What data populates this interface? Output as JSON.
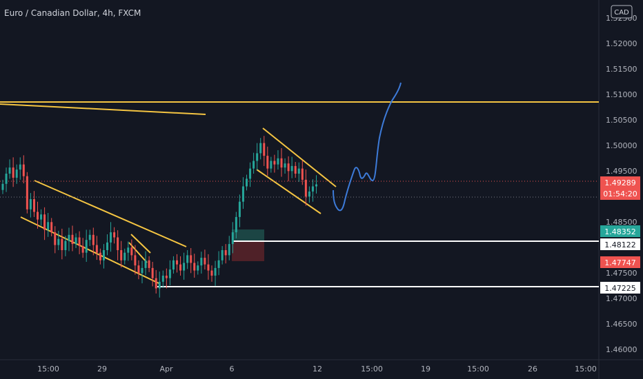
{
  "header": {
    "title": "Euro / Canadian Dollar, 4h, FXCM"
  },
  "currency_badge": "CAD",
  "colors": {
    "background": "#131722",
    "up": "#26a69a",
    "down": "#ef5350",
    "trendline": "#f5c542",
    "projection": "#3d7bd9",
    "text": "#b2b5be"
  },
  "price_axis": {
    "ticks": [
      "1.52500",
      "1.52000",
      "1.51500",
      "1.51000",
      "1.50500",
      "1.50000",
      "1.49500",
      "1.49000",
      "1.48500",
      "1.48000",
      "1.47500",
      "1.47000",
      "1.46500",
      "1.46000"
    ]
  },
  "time_axis": {
    "ticks": [
      "15:00",
      "29",
      "Apr",
      "6",
      "12",
      "15:00",
      "19",
      "15:00",
      "26",
      "15:00"
    ]
  },
  "price_labels": {
    "current": {
      "value": "1.49289",
      "countdown": "01:54:20",
      "color": "#ef5350"
    },
    "take_profit": {
      "value": "1.48352",
      "color": "#26a69a"
    },
    "entry": {
      "value": "1.48122",
      "color": "#ffffff"
    },
    "stop_loss": {
      "value": "1.47747",
      "color": "#ef5350"
    },
    "support": {
      "value": "1.47225",
      "color": "#ffffff"
    }
  },
  "chart_data": {
    "type": "candlestick",
    "instrument": "EURCAD",
    "interval": "4h",
    "source": "FXCM",
    "ylim": [
      1.4585,
      1.5265
    ],
    "candles_close": [
      1.493,
      1.495,
      1.4962,
      1.4942,
      1.4958,
      1.4968,
      1.4945,
      1.488,
      1.49,
      1.4875,
      1.486,
      1.487,
      1.484,
      1.4855,
      1.4835,
      1.481,
      1.4822,
      1.48,
      1.4818,
      1.483,
      1.4812,
      1.4825,
      1.4808,
      1.4795,
      1.482,
      1.483,
      1.481,
      1.4795,
      1.478,
      1.48,
      1.4815,
      1.4835,
      1.4825,
      1.48,
      1.478,
      1.4795,
      1.4805,
      1.479,
      1.477,
      1.4755,
      1.4765,
      1.478,
      1.4765,
      1.4745,
      1.4725,
      1.4738,
      1.475,
      1.4745,
      1.4762,
      1.478,
      1.4772,
      1.476,
      1.4775,
      1.479,
      1.4775,
      1.476,
      1.477,
      1.4785,
      1.4772,
      1.476,
      1.475,
      1.4765,
      1.478,
      1.48,
      1.479,
      1.4812,
      1.4835,
      1.4865,
      1.4895,
      1.4925,
      1.494,
      1.496,
      1.4975,
      1.499,
      1.501,
      1.4985,
      1.496,
      1.4975,
      1.4968,
      1.498,
      1.4962,
      1.497,
      1.4955,
      1.4965,
      1.495,
      1.496,
      1.4938,
      1.4905,
      1.4915,
      1.4925,
      1.4929
    ],
    "candles_open_first": 1.4918,
    "last_price": 1.49289,
    "resistance_level": 1.5085,
    "support_level": 1.47225,
    "trade_box": {
      "entry": 1.48122,
      "take_profit": 1.48352,
      "stop_loss": 1.47747
    },
    "projection_path": [
      1.4905,
      1.488,
      1.487,
      1.4915,
      1.4965,
      1.493,
      1.4935,
      1.502,
      1.508,
      1.512
    ]
  }
}
